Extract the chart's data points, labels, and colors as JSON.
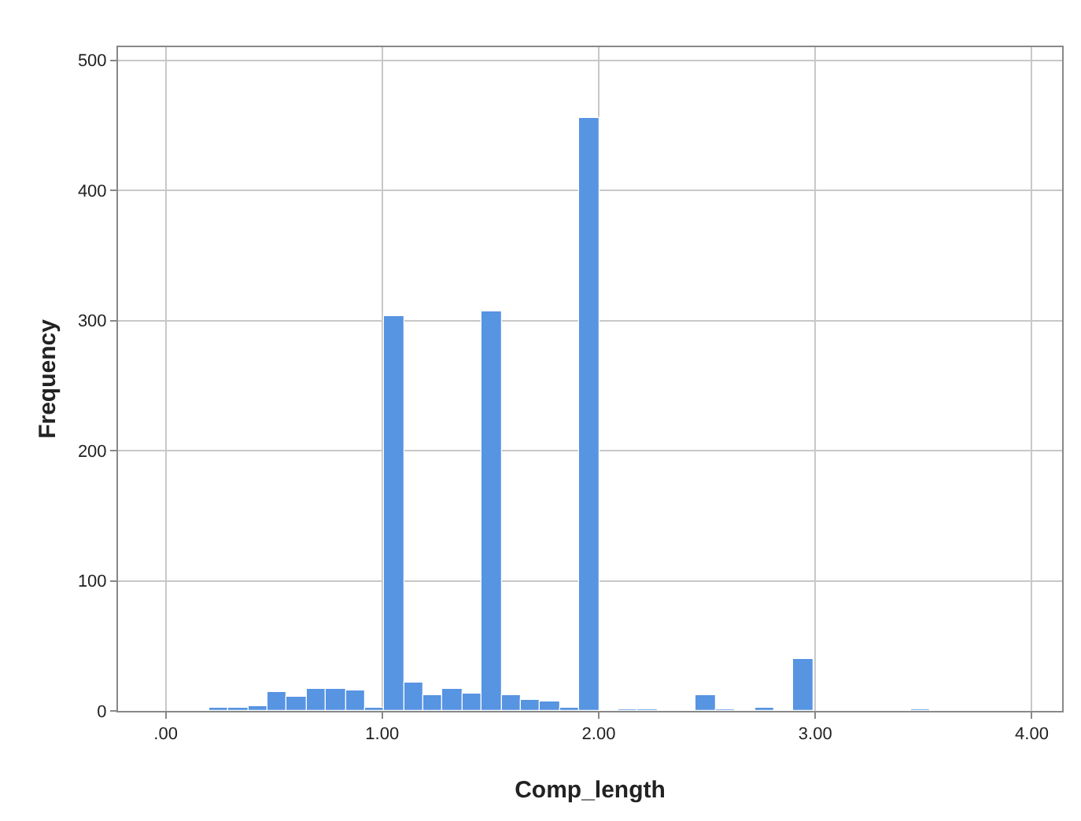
{
  "chart_data": {
    "type": "histogram",
    "xlabel": "Comp_length",
    "ylabel": "Frequency",
    "bins": [
      0.2,
      0.29,
      0.38,
      0.47,
      0.56,
      0.65,
      0.74,
      0.83,
      0.92,
      1.01,
      1.1,
      1.19,
      1.28,
      1.37,
      1.46,
      1.55,
      1.64,
      1.73,
      1.82,
      1.91,
      2.0,
      2.09,
      2.18,
      2.27,
      2.36,
      2.45,
      2.54,
      2.63,
      2.72,
      2.81,
      2.9,
      2.99,
      3.08,
      3.17,
      3.26,
      3.35,
      3.44,
      3.53
    ],
    "values": [
      2,
      3,
      4,
      15,
      11,
      17,
      17,
      16,
      2,
      303,
      22,
      12,
      17,
      13,
      307,
      12,
      9,
      7,
      2,
      456,
      0,
      1,
      1,
      0,
      0,
      12,
      1,
      0,
      2,
      0,
      40,
      0,
      0,
      0,
      0,
      0,
      1
    ],
    "color": "#5794e2",
    "xlim": [
      -0.22,
      4.14
    ],
    "xticks": [
      {
        "value": 0,
        "label": ".00"
      },
      {
        "value": 1,
        "label": "1.00"
      },
      {
        "value": 2,
        "label": "2.00"
      },
      {
        "value": 3,
        "label": "3.00"
      },
      {
        "value": 4,
        "label": "4.00"
      }
    ],
    "ylim": [
      0,
      510
    ],
    "yticks": [
      0,
      100,
      200,
      300,
      400,
      500
    ],
    "grid": true
  }
}
